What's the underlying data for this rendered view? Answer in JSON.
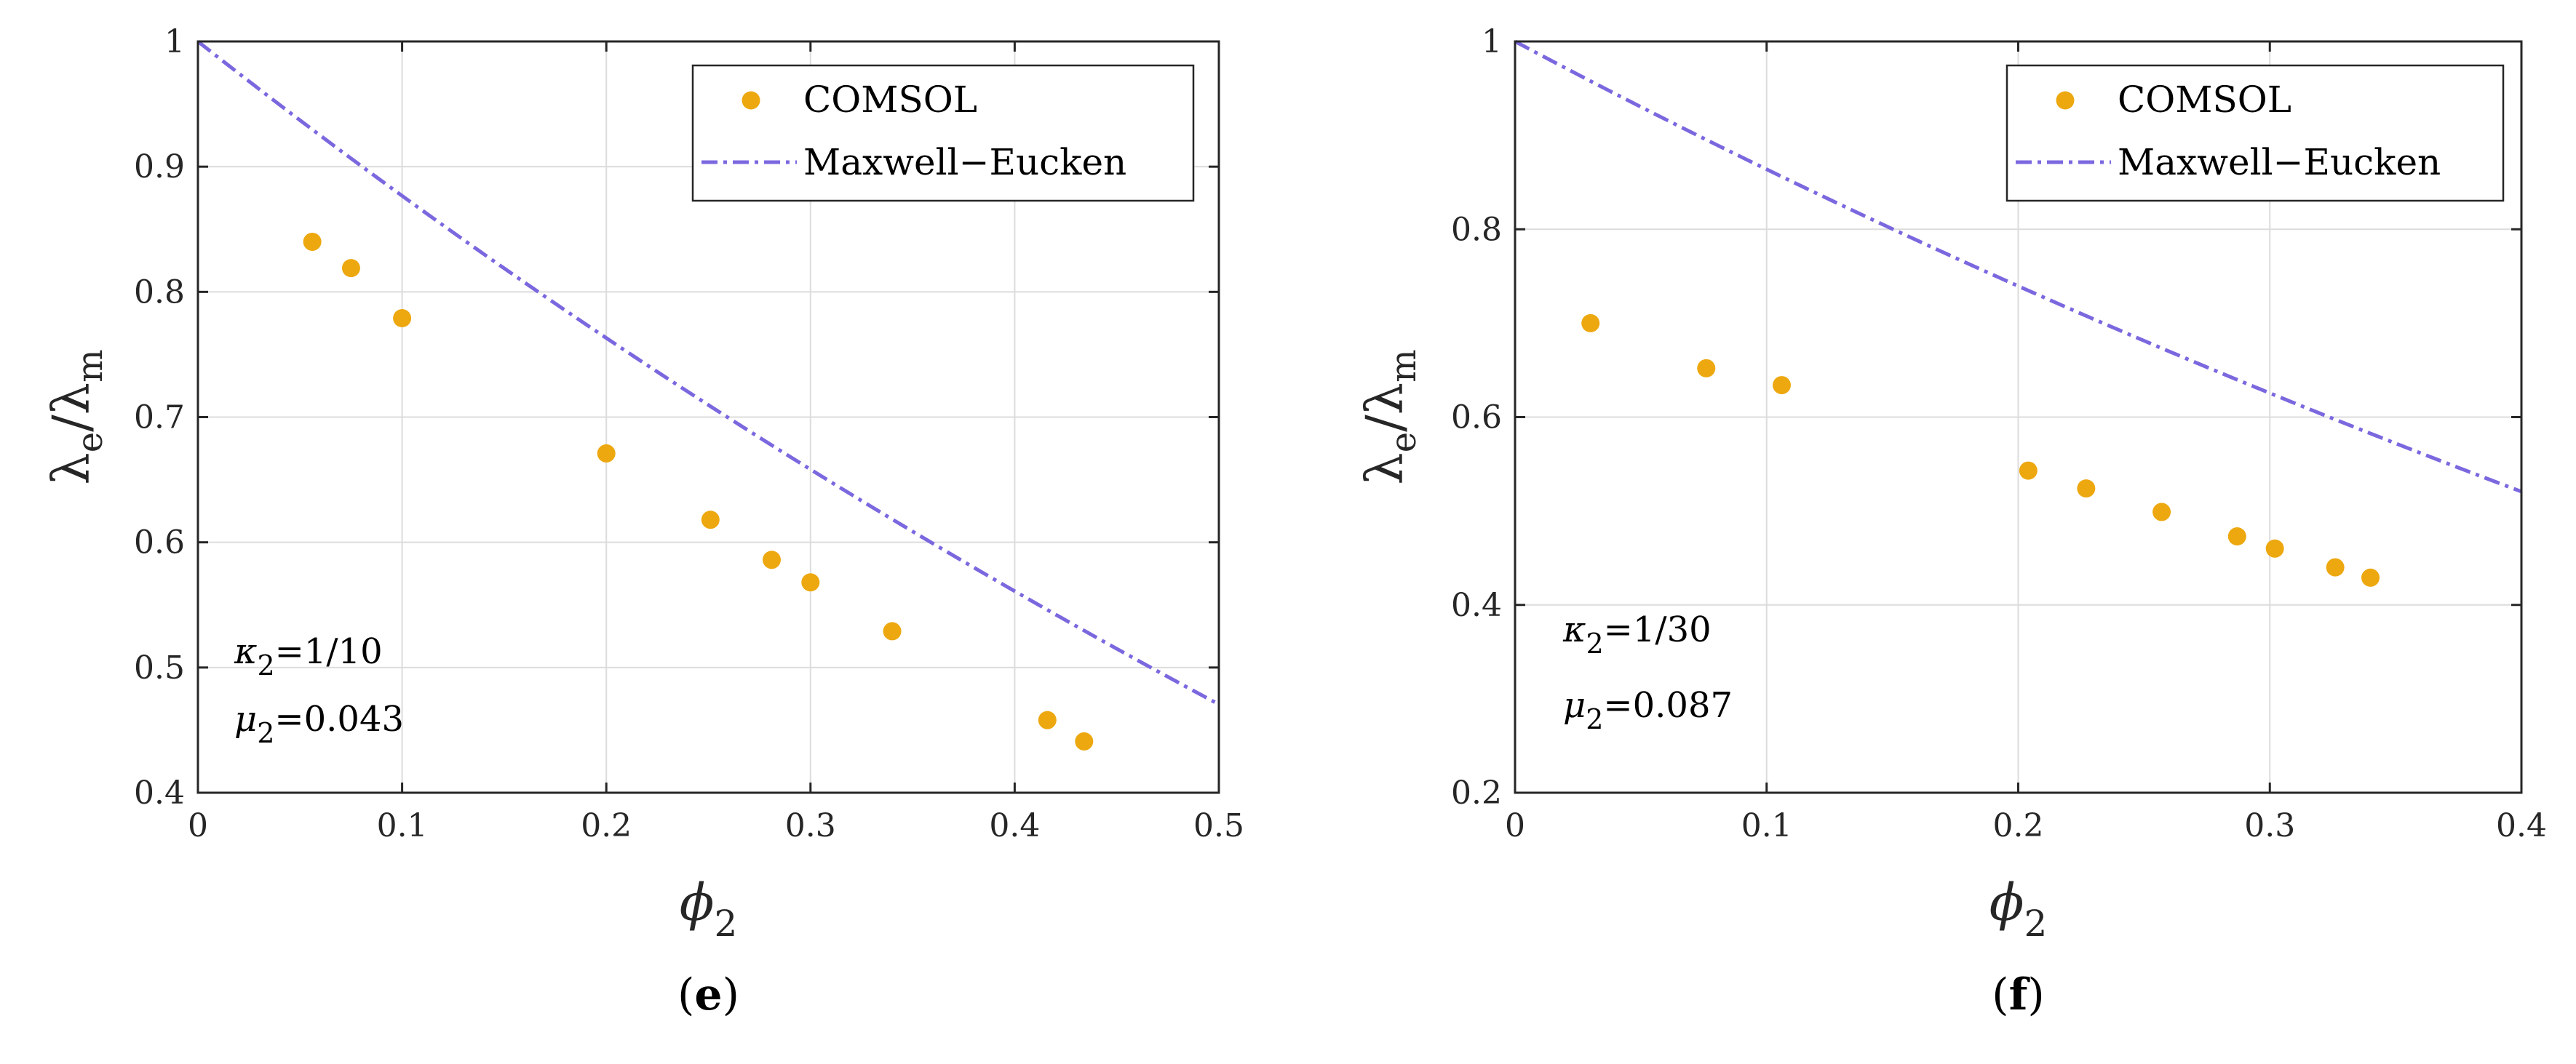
{
  "colors": {
    "comsol": "#EDA80F",
    "maxwell": "#7B68DF",
    "grid": "#DCDCDC",
    "axis": "#262626"
  },
  "chart_data": [
    {
      "type": "scatter",
      "panel_label": "e",
      "xlabel_symbol": "ϕ",
      "xlabel_sub": "2",
      "ylabel_main": "λ",
      "ylabel_sub_e": "e",
      "ylabel_slash": "/",
      "ylabel_main2": "λ",
      "ylabel_sub_m": "m",
      "xlim": [
        0,
        0.5
      ],
      "ylim": [
        0.4,
        1.0
      ],
      "xticks": [
        0,
        0.1,
        0.2,
        0.3,
        0.4,
        0.5
      ],
      "xtick_labels": [
        "0",
        "0.1",
        "0.2",
        "0.3",
        "0.4",
        "0.5"
      ],
      "yticks": [
        0.4,
        0.5,
        0.6,
        0.7,
        0.8,
        0.9,
        1.0
      ],
      "ytick_labels": [
        "0.4",
        "0.5",
        "0.6",
        "0.7",
        "0.8",
        "0.9",
        "1"
      ],
      "grid": true,
      "legend_position": "top-right",
      "legend": [
        "COMSOL",
        "Maxwell−Eucken"
      ],
      "annotations": [
        {
          "sym": "κ",
          "sub": "2",
          "text": "=1/10"
        },
        {
          "sym": "μ",
          "sub": "2",
          "text": "=0.043"
        }
      ],
      "kappa": 0.1,
      "series": [
        {
          "name": "COMSOL",
          "kind": "points",
          "x": [
            0.056,
            0.075,
            0.1,
            0.2,
            0.251,
            0.281,
            0.3,
            0.34,
            0.416,
            0.434
          ],
          "y": [
            0.84,
            0.819,
            0.779,
            0.671,
            0.618,
            0.586,
            0.568,
            0.529,
            0.458,
            0.441
          ]
        },
        {
          "name": "Maxwell−Eucken",
          "kind": "curve",
          "x_range": [
            0,
            0.5
          ]
        }
      ]
    },
    {
      "type": "scatter",
      "panel_label": "f",
      "xlabel_symbol": "ϕ",
      "xlabel_sub": "2",
      "ylabel_main": "λ",
      "ylabel_sub_e": "e",
      "ylabel_slash": "/",
      "ylabel_main2": "λ",
      "ylabel_sub_m": "m",
      "xlim": [
        0,
        0.4
      ],
      "ylim": [
        0.2,
        1.0
      ],
      "xticks": [
        0,
        0.1,
        0.2,
        0.3,
        0.4
      ],
      "xtick_labels": [
        "0",
        "0.1",
        "0.2",
        "0.3",
        "0.4"
      ],
      "yticks": [
        0.2,
        0.4,
        0.6,
        0.8,
        1.0
      ],
      "ytick_labels": [
        "0.2",
        "0.4",
        "0.6",
        "0.8",
        "1"
      ],
      "grid": true,
      "legend_position": "top-right",
      "legend": [
        "COMSOL",
        "Maxwell−Eucken"
      ],
      "annotations": [
        {
          "sym": "κ",
          "sub": "2",
          "text": "=1/30"
        },
        {
          "sym": "μ",
          "sub": "2",
          "text": "=0.087"
        }
      ],
      "kappa": 0.0333333,
      "series": [
        {
          "name": "COMSOL",
          "kind": "points",
          "x": [
            0.03,
            0.076,
            0.106,
            0.204,
            0.227,
            0.257,
            0.287,
            0.302,
            0.326,
            0.34
          ],
          "y": [
            0.7,
            0.652,
            0.634,
            0.543,
            0.524,
            0.499,
            0.473,
            0.46,
            0.44,
            0.429
          ]
        },
        {
          "name": "Maxwell−Eucken",
          "kind": "curve",
          "x_range": [
            0,
            0.4
          ]
        }
      ]
    }
  ]
}
